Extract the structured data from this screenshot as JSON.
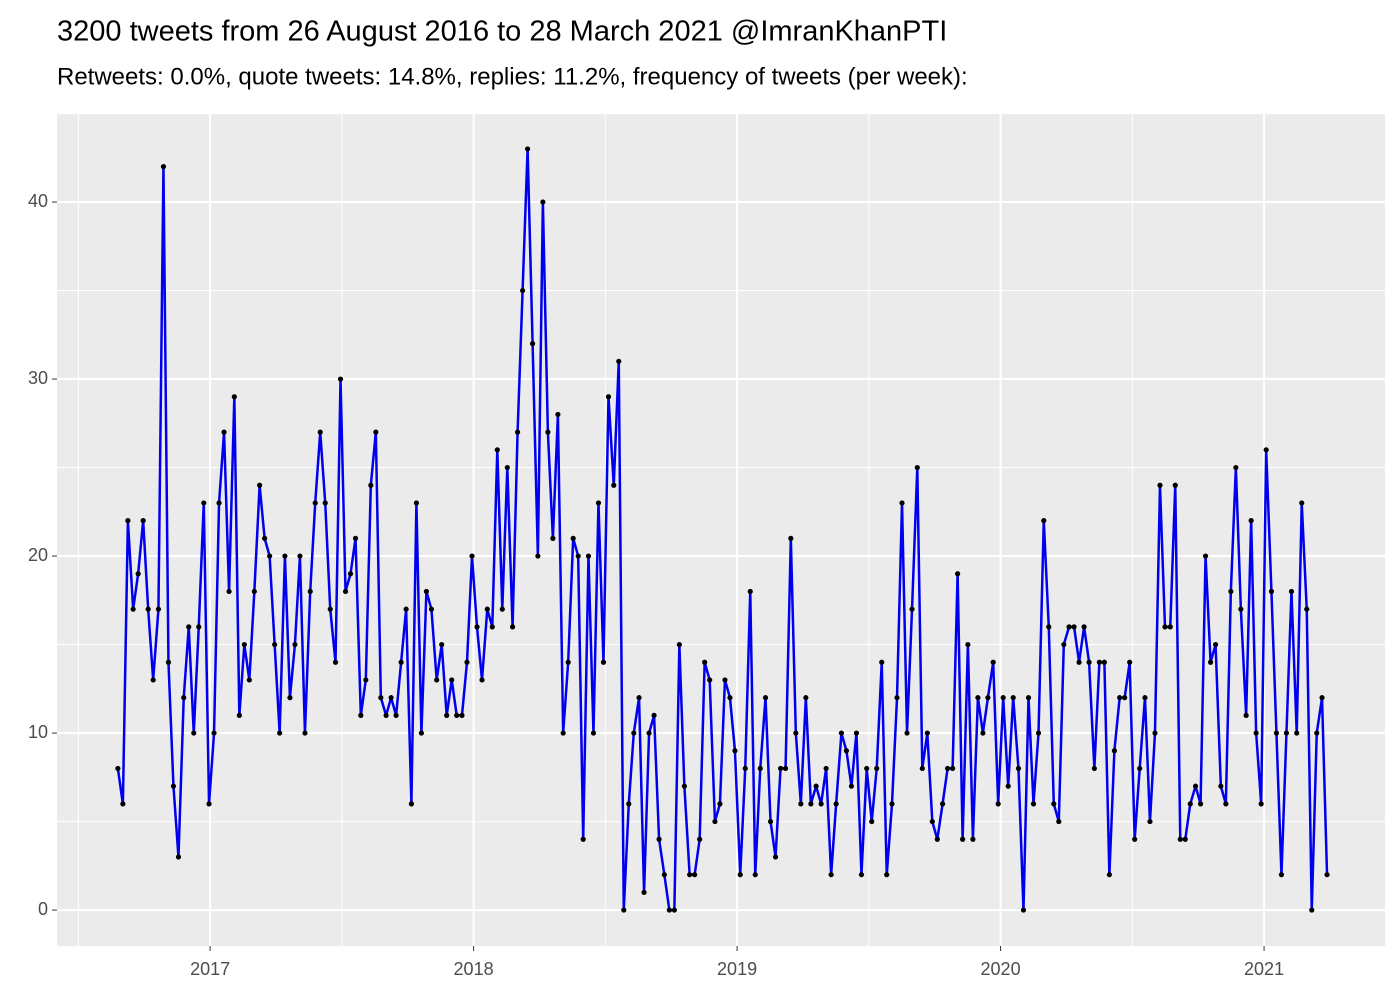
{
  "chart_data": {
    "type": "line",
    "title": "3200 tweets from 26 August 2016 to 28 March 2021 @ImranKhanPTI",
    "subtitle": "Retweets: 0.0%, quote tweets: 14.8%, replies: 11.2%, frequency of tweets (per week):",
    "x": [
      2016.65,
      2016.669,
      2016.688,
      2016.708,
      2016.727,
      2016.746,
      2016.765,
      2016.784,
      2016.804,
      2016.823,
      2016.842,
      2016.861,
      2016.88,
      2016.9,
      2016.919,
      2016.938,
      2016.957,
      2016.976,
      2016.996,
      2017.015,
      2017.034,
      2017.053,
      2017.072,
      2017.092,
      2017.111,
      2017.13,
      2017.149,
      2017.168,
      2017.188,
      2017.207,
      2017.226,
      2017.245,
      2017.264,
      2017.284,
      2017.303,
      2017.322,
      2017.341,
      2017.36,
      2017.38,
      2017.399,
      2017.418,
      2017.437,
      2017.456,
      2017.476,
      2017.495,
      2017.514,
      2017.533,
      2017.552,
      2017.572,
      2017.591,
      2017.61,
      2017.629,
      2017.648,
      2017.668,
      2017.687,
      2017.706,
      2017.725,
      2017.744,
      2017.764,
      2017.783,
      2017.802,
      2017.821,
      2017.84,
      2017.86,
      2017.879,
      2017.898,
      2017.917,
      2017.936,
      2017.956,
      2017.975,
      2017.994,
      2018.013,
      2018.032,
      2018.052,
      2018.071,
      2018.09,
      2018.109,
      2018.128,
      2018.148,
      2018.167,
      2018.186,
      2018.205,
      2018.224,
      2018.244,
      2018.263,
      2018.282,
      2018.301,
      2018.32,
      2018.34,
      2018.359,
      2018.378,
      2018.397,
      2018.416,
      2018.436,
      2018.455,
      2018.474,
      2018.493,
      2018.512,
      2018.532,
      2018.551,
      2018.57,
      2018.589,
      2018.608,
      2018.628,
      2018.647,
      2018.666,
      2018.685,
      2018.704,
      2018.724,
      2018.743,
      2018.762,
      2018.781,
      2018.8,
      2018.82,
      2018.839,
      2018.858,
      2018.877,
      2018.896,
      2018.916,
      2018.935,
      2018.954,
      2018.973,
      2018.992,
      2019.012,
      2019.031,
      2019.05,
      2019.069,
      2019.088,
      2019.108,
      2019.127,
      2019.146,
      2019.165,
      2019.184,
      2019.204,
      2019.223,
      2019.242,
      2019.261,
      2019.28,
      2019.3,
      2019.319,
      2019.338,
      2019.357,
      2019.376,
      2019.396,
      2019.415,
      2019.434,
      2019.453,
      2019.472,
      2019.492,
      2019.511,
      2019.53,
      2019.549,
      2019.568,
      2019.588,
      2019.607,
      2019.626,
      2019.645,
      2019.664,
      2019.684,
      2019.703,
      2019.722,
      2019.741,
      2019.76,
      2019.78,
      2019.799,
      2019.818,
      2019.837,
      2019.856,
      2019.876,
      2019.895,
      2019.914,
      2019.933,
      2019.952,
      2019.972,
      2019.991,
      2020.01,
      2020.029,
      2020.048,
      2020.068,
      2020.087,
      2020.106,
      2020.125,
      2020.144,
      2020.164,
      2020.183,
      2020.202,
      2020.221,
      2020.24,
      2020.26,
      2020.279,
      2020.298,
      2020.317,
      2020.336,
      2020.356,
      2020.375,
      2020.394,
      2020.413,
      2020.432,
      2020.452,
      2020.471,
      2020.49,
      2020.509,
      2020.528,
      2020.548,
      2020.567,
      2020.586,
      2020.605,
      2020.624,
      2020.644,
      2020.663,
      2020.682,
      2020.701,
      2020.72,
      2020.74,
      2020.759,
      2020.778,
      2020.797,
      2020.816,
      2020.836,
      2020.855,
      2020.874,
      2020.893,
      2020.912,
      2020.932,
      2020.951,
      2020.97,
      2020.989,
      2021.008,
      2021.028,
      2021.047,
      2021.066,
      2021.085,
      2021.104,
      2021.124,
      2021.143,
      2021.162,
      2021.181,
      2021.2,
      2021.22,
      2021.239
    ],
    "series": [
      {
        "color": "#0000ee",
        "point_color": "#000000",
        "values": [
          8,
          6,
          22,
          17,
          19,
          22,
          17,
          13,
          17,
          42,
          14,
          7,
          3,
          12,
          16,
          10,
          16,
          23,
          6,
          10,
          23,
          27,
          18,
          29,
          11,
          15,
          13,
          18,
          24,
          21,
          20,
          15,
          10,
          20,
          12,
          15,
          20,
          10,
          18,
          23,
          27,
          23,
          17,
          14,
          30,
          18,
          19,
          21,
          11,
          13,
          24,
          27,
          12,
          11,
          12,
          11,
          14,
          17,
          6,
          23,
          10,
          18,
          17,
          13,
          15,
          11,
          13,
          11,
          11,
          14,
          20,
          16,
          13,
          17,
          16,
          26,
          17,
          25,
          16,
          27,
          35,
          43,
          32,
          20,
          40,
          27,
          21,
          28,
          10,
          14,
          21,
          20,
          4,
          20,
          10,
          23,
          14,
          29,
          24,
          31,
          0,
          6,
          10,
          12,
          1,
          10,
          11,
          4,
          2,
          0,
          0,
          15,
          7,
          2,
          2,
          4,
          14,
          13,
          5,
          6,
          13,
          12,
          9,
          2,
          8,
          18,
          2,
          8,
          12,
          5,
          3,
          8,
          8,
          21,
          10,
          6,
          12,
          6,
          7,
          6,
          8,
          2,
          6,
          10,
          9,
          7,
          10,
          2,
          8,
          5,
          8,
          14,
          2,
          6,
          12,
          23,
          10,
          17,
          25,
          8,
          10,
          5,
          4,
          6,
          8,
          8,
          19,
          4,
          15,
          4,
          12,
          10,
          12,
          14,
          6,
          12,
          7,
          12,
          8,
          0,
          12,
          6,
          10,
          22,
          16,
          6,
          5,
          15,
          16,
          16,
          14,
          16,
          14,
          8,
          14,
          14,
          2,
          9,
          12,
          12,
          14,
          4,
          8,
          12,
          5,
          10,
          24,
          16,
          16,
          24,
          4,
          4,
          6,
          7,
          6,
          20,
          14,
          15,
          7,
          6,
          18,
          25,
          17,
          11,
          22,
          10,
          6,
          26,
          18,
          10,
          2,
          10,
          18,
          10,
          23,
          17,
          0,
          10,
          12,
          2
        ]
      }
    ],
    "xlim": [
      2016.419,
      2021.459
    ],
    "xticks": [
      2017,
      2018,
      2019,
      2020,
      2021
    ],
    "ylim": [
      -2.03,
      45.03
    ],
    "yticks": [
      0,
      10,
      20,
      30,
      40
    ],
    "grid": true
  }
}
